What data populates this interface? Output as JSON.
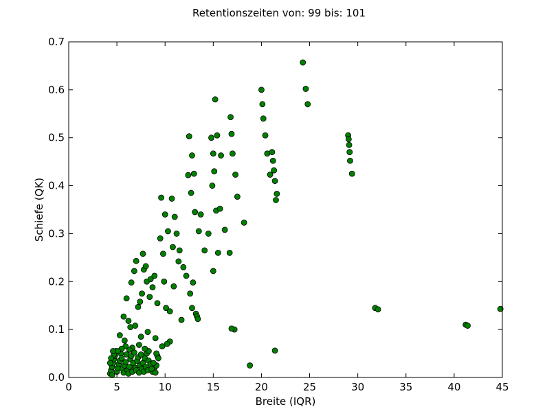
{
  "chart_data": {
    "type": "scatter",
    "title": "Retentionszeiten von: 99 bis: 101",
    "xlabel": "Breite (IQR)",
    "ylabel": "Schiefe (QK)",
    "xlim": [
      0,
      45
    ],
    "ylim": [
      0,
      0.7
    ],
    "xticks": [
      0,
      5,
      10,
      15,
      20,
      25,
      30,
      35,
      40,
      45
    ],
    "yticks": [
      0.0,
      0.1,
      0.2,
      0.3,
      0.4,
      0.5,
      0.6,
      0.7
    ],
    "xtick_labels": [
      "0",
      "5",
      "10",
      "15",
      "20",
      "25",
      "30",
      "35",
      "40",
      "45"
    ],
    "ytick_labels": [
      "0.0",
      "0.1",
      "0.2",
      "0.3",
      "0.4",
      "0.5",
      "0.6",
      "0.7"
    ],
    "grid": false,
    "marker_color": "#008000",
    "marker_edge_color": "#000000",
    "points": [
      [
        4.3,
        0.008
      ],
      [
        4.4,
        0.015
      ],
      [
        4.5,
        0.022
      ],
      [
        4.6,
        0.03
      ],
      [
        4.7,
        0.038
      ],
      [
        4.8,
        0.045
      ],
      [
        4.9,
        0.055
      ],
      [
        4.5,
        0.005
      ],
      [
        5.0,
        0.012
      ],
      [
        5.1,
        0.02
      ],
      [
        5.2,
        0.028
      ],
      [
        5.3,
        0.035
      ],
      [
        5.4,
        0.05
      ],
      [
        5.5,
        0.04
      ],
      [
        5.6,
        0.018
      ],
      [
        5.7,
        0.01
      ],
      [
        5.8,
        0.025
      ],
      [
        5.9,
        0.032
      ],
      [
        6.0,
        0.048
      ],
      [
        6.1,
        0.015
      ],
      [
        6.2,
        0.008
      ],
      [
        6.3,
        0.022
      ],
      [
        6.4,
        0.038
      ],
      [
        6.5,
        0.045
      ],
      [
        6.6,
        0.012
      ],
      [
        6.7,
        0.03
      ],
      [
        6.8,
        0.052
      ],
      [
        6.9,
        0.02
      ],
      [
        7.0,
        0.015
      ],
      [
        7.1,
        0.035
      ],
      [
        7.2,
        0.042
      ],
      [
        7.3,
        0.01
      ],
      [
        7.4,
        0.025
      ],
      [
        7.5,
        0.048
      ],
      [
        7.6,
        0.018
      ],
      [
        7.7,
        0.03
      ],
      [
        7.8,
        0.012
      ],
      [
        7.9,
        0.04
      ],
      [
        8.0,
        0.022
      ],
      [
        8.1,
        0.05
      ],
      [
        8.2,
        0.015
      ],
      [
        8.3,
        0.035
      ],
      [
        8.5,
        0.028
      ],
      [
        8.7,
        0.012
      ],
      [
        8.9,
        0.02
      ],
      [
        9.0,
        0.01
      ],
      [
        9.1,
        0.025
      ],
      [
        9.2,
        0.045
      ],
      [
        5.3,
        0.088
      ],
      [
        5.8,
        0.077
      ],
      [
        5.7,
        0.127
      ],
      [
        6.0,
        0.165
      ],
      [
        6.2,
        0.118
      ],
      [
        6.4,
        0.105
      ],
      [
        6.5,
        0.198
      ],
      [
        6.8,
        0.222
      ],
      [
        6.9,
        0.108
      ],
      [
        7.0,
        0.243
      ],
      [
        7.2,
        0.147
      ],
      [
        7.4,
        0.158
      ],
      [
        7.5,
        0.085
      ],
      [
        7.6,
        0.175
      ],
      [
        7.7,
        0.258
      ],
      [
        7.8,
        0.225
      ],
      [
        8.0,
        0.232
      ],
      [
        8.1,
        0.2
      ],
      [
        8.2,
        0.095
      ],
      [
        8.4,
        0.168
      ],
      [
        8.5,
        0.205
      ],
      [
        8.7,
        0.188
      ],
      [
        8.9,
        0.212
      ],
      [
        9.0,
        0.082
      ],
      [
        9.2,
        0.155
      ],
      [
        9.5,
        0.29
      ],
      [
        9.6,
        0.375
      ],
      [
        9.8,
        0.258
      ],
      [
        9.9,
        0.2
      ],
      [
        10.0,
        0.34
      ],
      [
        10.1,
        0.145
      ],
      [
        10.3,
        0.305
      ],
      [
        10.5,
        0.138
      ],
      [
        10.7,
        0.373
      ],
      [
        10.8,
        0.272
      ],
      [
        10.9,
        0.19
      ],
      [
        11.0,
        0.335
      ],
      [
        11.2,
        0.3
      ],
      [
        11.4,
        0.242
      ],
      [
        11.5,
        0.265
      ],
      [
        11.7,
        0.12
      ],
      [
        11.9,
        0.23
      ],
      [
        12.2,
        0.212
      ],
      [
        12.4,
        0.422
      ],
      [
        12.5,
        0.503
      ],
      [
        12.6,
        0.175
      ],
      [
        12.7,
        0.385
      ],
      [
        12.8,
        0.463
      ],
      [
        12.9,
        0.198
      ],
      [
        13.0,
        0.425
      ],
      [
        13.1,
        0.345
      ],
      [
        13.2,
        0.133
      ],
      [
        13.3,
        0.128
      ],
      [
        13.4,
        0.122
      ],
      [
        13.5,
        0.305
      ],
      [
        13.7,
        0.34
      ],
      [
        14.1,
        0.265
      ],
      [
        14.5,
        0.3
      ],
      [
        14.8,
        0.5
      ],
      [
        14.9,
        0.4
      ],
      [
        15.0,
        0.467
      ],
      [
        15.1,
        0.43
      ],
      [
        15.2,
        0.58
      ],
      [
        15.3,
        0.348
      ],
      [
        15.4,
        0.505
      ],
      [
        15.5,
        0.26
      ],
      [
        15.7,
        0.352
      ],
      [
        15.8,
        0.463
      ],
      [
        16.2,
        0.308
      ],
      [
        16.7,
        0.26
      ],
      [
        16.8,
        0.543
      ],
      [
        16.9,
        0.508
      ],
      [
        17.0,
        0.467
      ],
      [
        17.3,
        0.423
      ],
      [
        17.5,
        0.377
      ],
      [
        18.2,
        0.323
      ],
      [
        20.0,
        0.6
      ],
      [
        20.1,
        0.57
      ],
      [
        20.2,
        0.54
      ],
      [
        20.4,
        0.505
      ],
      [
        20.6,
        0.467
      ],
      [
        20.9,
        0.423
      ],
      [
        21.1,
        0.47
      ],
      [
        21.2,
        0.452
      ],
      [
        21.3,
        0.432
      ],
      [
        21.4,
        0.41
      ],
      [
        21.5,
        0.37
      ],
      [
        21.6,
        0.383
      ],
      [
        24.3,
        0.657
      ],
      [
        24.6,
        0.602
      ],
      [
        24.8,
        0.57
      ],
      [
        29.0,
        0.505
      ],
      [
        29.05,
        0.497
      ],
      [
        29.1,
        0.485
      ],
      [
        29.15,
        0.47
      ],
      [
        29.2,
        0.452
      ],
      [
        29.4,
        0.425
      ],
      [
        31.8,
        0.145
      ],
      [
        32.1,
        0.142
      ],
      [
        41.2,
        0.11
      ],
      [
        41.4,
        0.108
      ],
      [
        44.8,
        0.143
      ],
      [
        18.8,
        0.025
      ],
      [
        21.4,
        0.056
      ],
      [
        17.2,
        0.1
      ],
      [
        16.9,
        0.102
      ],
      [
        15.0,
        0.222
      ],
      [
        12.8,
        0.145
      ],
      [
        10.5,
        0.075
      ],
      [
        10.2,
        0.07
      ],
      [
        9.7,
        0.065
      ],
      [
        9.1,
        0.05
      ],
      [
        9.3,
        0.04
      ],
      [
        8.8,
        0.03
      ],
      [
        8.6,
        0.018
      ],
      [
        8.3,
        0.055
      ],
      [
        7.9,
        0.06
      ],
      [
        7.3,
        0.068
      ],
      [
        6.6,
        0.062
      ],
      [
        6.3,
        0.058
      ],
      [
        5.9,
        0.065
      ],
      [
        5.5,
        0.06
      ],
      [
        5.1,
        0.055
      ],
      [
        4.7,
        0.048
      ],
      [
        4.6,
        0.055
      ],
      [
        4.4,
        0.04
      ],
      [
        4.3,
        0.03
      ]
    ]
  }
}
